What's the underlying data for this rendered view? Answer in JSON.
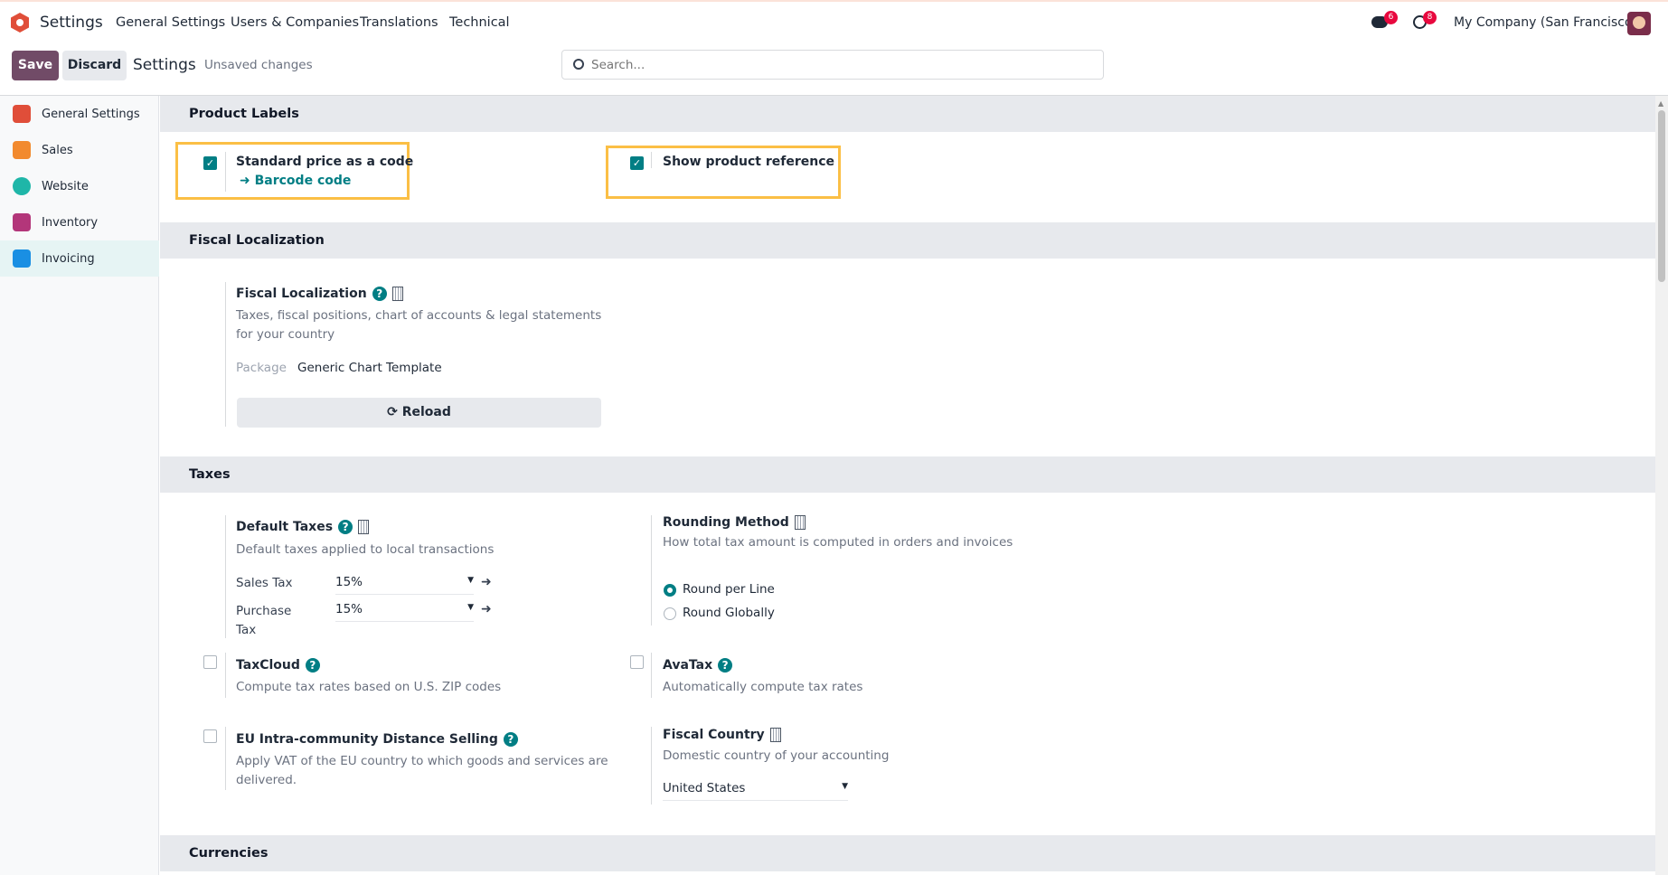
{
  "topbar": {
    "app_name": "Settings",
    "menu": [
      "General Settings",
      "Users & Companies",
      "Translations",
      "Technical"
    ],
    "messages_badge": "6",
    "activities_badge": "8",
    "company": "My Company (San Francisco)"
  },
  "control": {
    "save": "Save",
    "discard": "Discard",
    "breadcrumb": "Settings",
    "status": "Unsaved changes",
    "search_placeholder": "Search..."
  },
  "sidebar": {
    "items": [
      {
        "label": "General Settings",
        "color": "#e04e39"
      },
      {
        "label": "Sales",
        "color": "#f28a2e"
      },
      {
        "label": "Website",
        "color": "#1fb6a8"
      },
      {
        "label": "Inventory",
        "color": "#b3367a"
      },
      {
        "label": "Invoicing",
        "color": "#1a8fe3"
      }
    ],
    "active": "Invoicing"
  },
  "accent": "#017e84",
  "sections": {
    "product_labels": {
      "title": "Product Labels",
      "standard_price": {
        "label": "Standard price as a code",
        "checked": true,
        "link": "Barcode code"
      },
      "show_ref": {
        "label": "Show product reference",
        "checked": true
      }
    },
    "fiscal": {
      "title": "Fiscal Localization",
      "setting_title": "Fiscal Localization",
      "desc": "Taxes, fiscal positions, chart of accounts & legal statements for your country",
      "package_label": "Package",
      "package_value": "Generic Chart Template",
      "reload": "Reload"
    },
    "taxes": {
      "title": "Taxes",
      "default_taxes": {
        "title": "Default Taxes",
        "desc": "Default taxes applied to local transactions",
        "sales_label": "Sales Tax",
        "sales_value": "15%",
        "purchase_label_1": "Purchase",
        "purchase_label_2": "Tax",
        "purchase_value": "15%"
      },
      "rounding": {
        "title": "Rounding Method",
        "desc": "How total tax amount is computed in orders and invoices",
        "options": [
          "Round per Line",
          "Round Globally"
        ],
        "selected": "Round per Line"
      },
      "taxcloud": {
        "title": "TaxCloud",
        "desc": "Compute tax rates based on U.S. ZIP codes",
        "checked": false
      },
      "avatax": {
        "title": "AvaTax",
        "desc": "Automatically compute tax rates",
        "checked": false
      },
      "eu": {
        "title": "EU Intra-community Distance Selling",
        "desc": "Apply VAT of the EU country to which goods and services are delivered.",
        "checked": false
      },
      "fiscal_country": {
        "title": "Fiscal Country",
        "desc": "Domestic country of your accounting",
        "value": "United States"
      }
    },
    "currencies": {
      "title": "Currencies"
    }
  }
}
